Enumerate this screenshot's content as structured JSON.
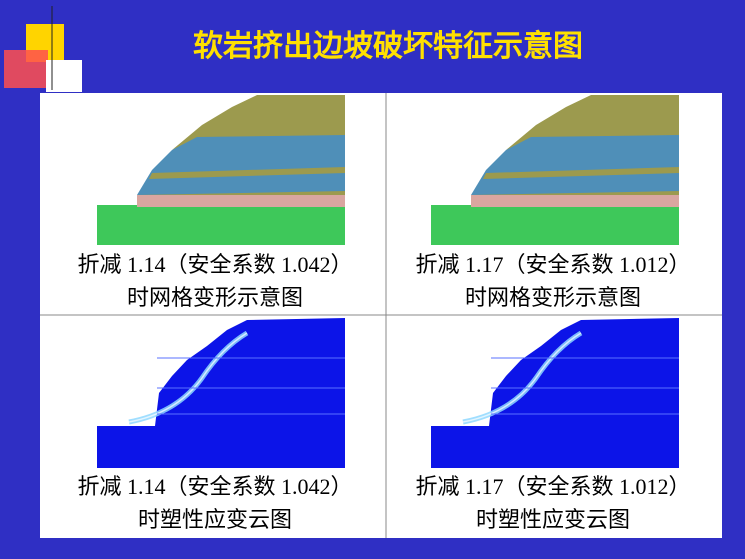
{
  "title": "软岩挤出边坡破坏特征示意图",
  "panels": [
    {
      "caption": [
        "折减 1.14（安全系数 1.042）",
        "时网格变形示意图"
      ]
    },
    {
      "caption": [
        "折减 1.17（安全系数 1.012）",
        "时网格变形示意图"
      ]
    },
    {
      "caption": [
        "折减 1.14（安全系数 1.042）",
        "时塑性应变云图"
      ]
    },
    {
      "caption": [
        "折减 1.17（安全系数 1.012）",
        "时塑性应变云图"
      ]
    }
  ]
}
